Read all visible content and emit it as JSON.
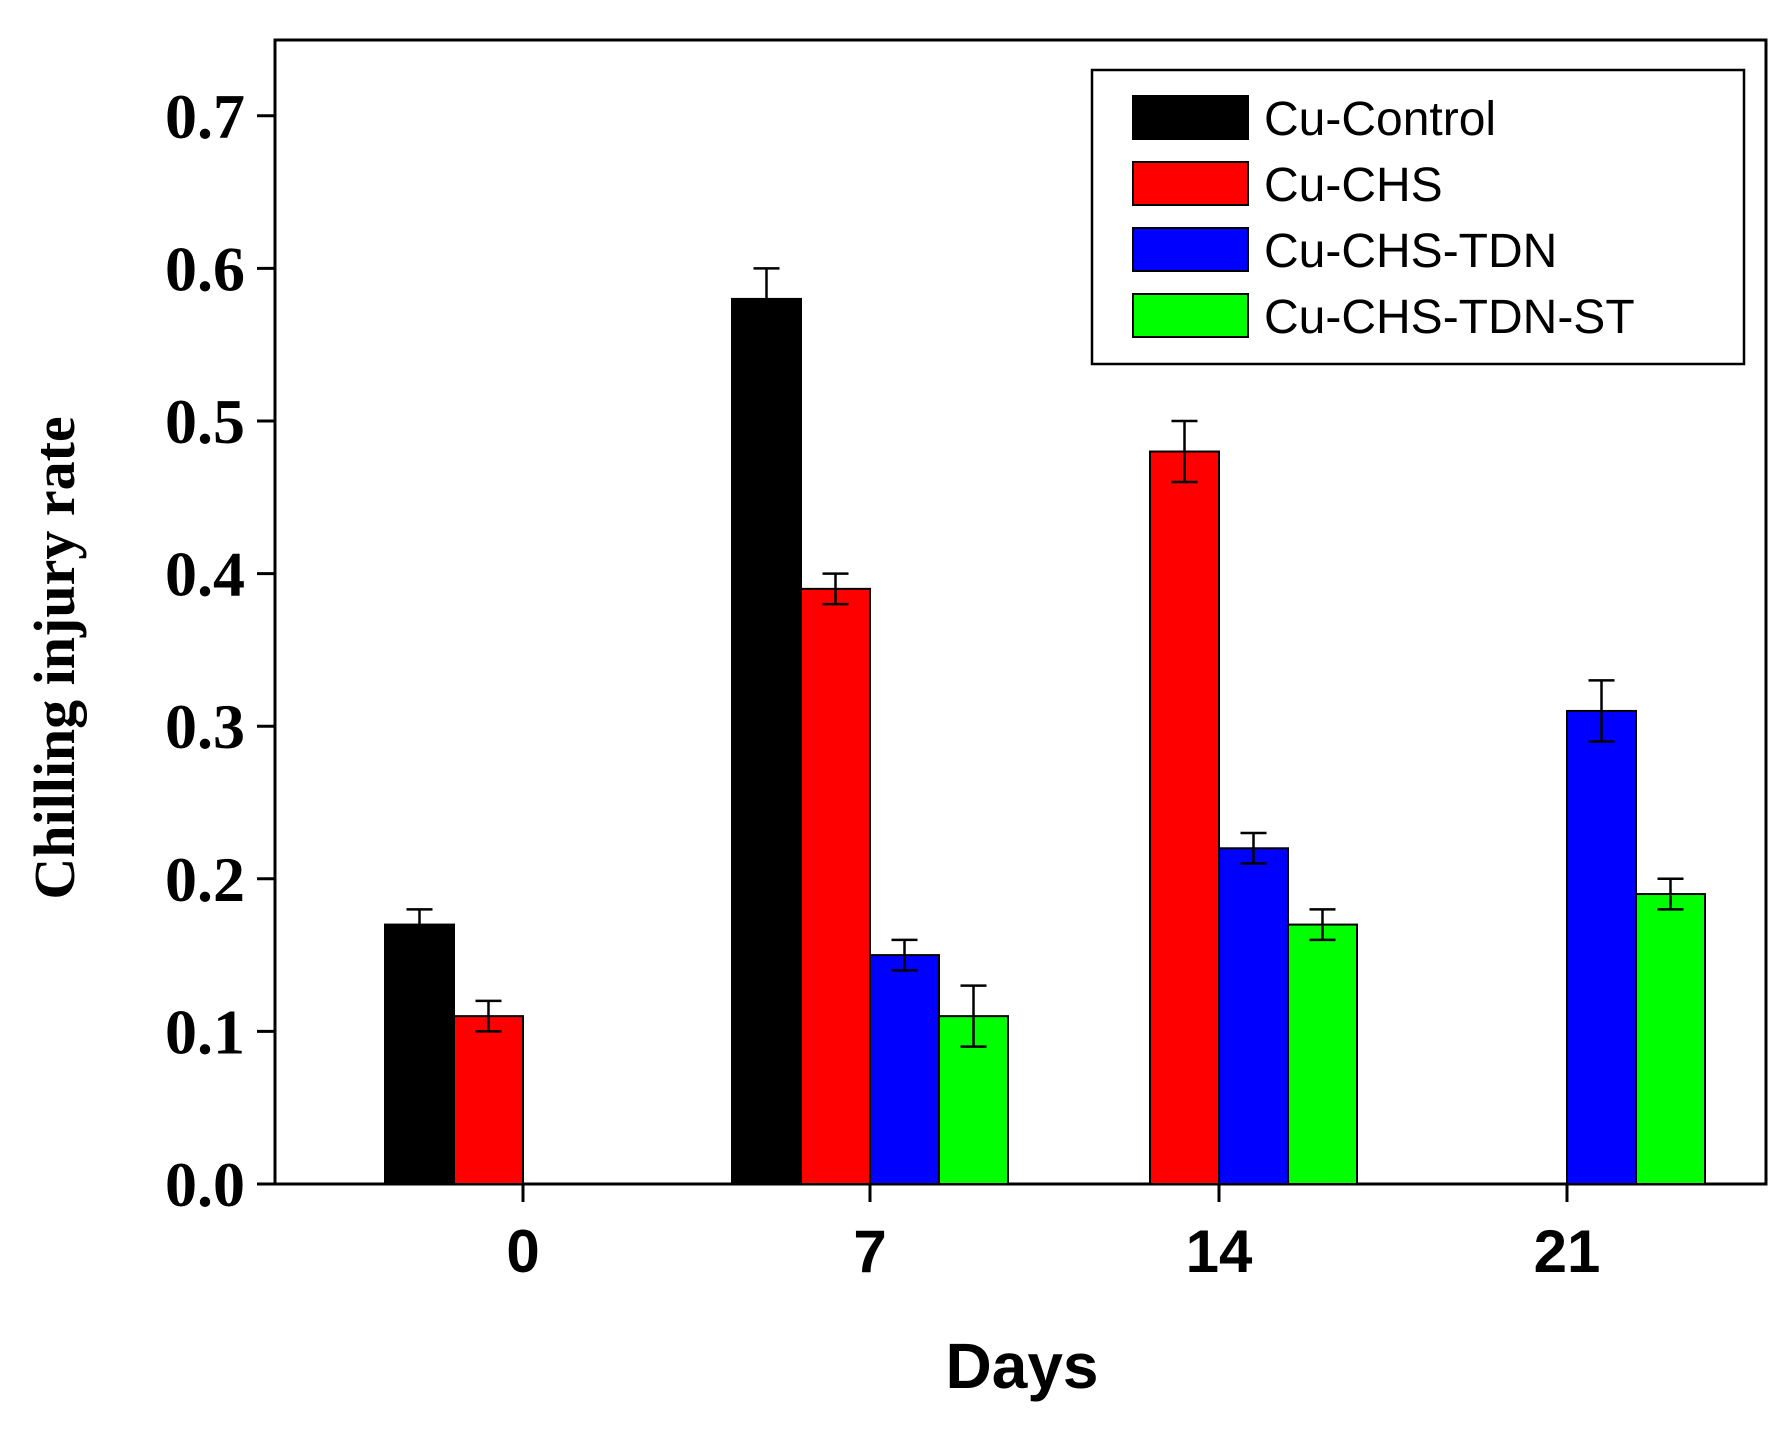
{
  "chart_data": {
    "type": "bar",
    "title": "",
    "xlabel": "Days",
    "ylabel": "Chilling injury rate",
    "categories": [
      "0",
      "7",
      "14",
      "21"
    ],
    "ylim": [
      0,
      0.75
    ],
    "yticks": [
      0.0,
      0.1,
      0.2,
      0.3,
      0.4,
      0.5,
      0.6,
      0.7
    ],
    "ytick_labels": [
      "0.0",
      "0.1",
      "0.2",
      "0.3",
      "0.4",
      "0.5",
      "0.6",
      "0.7"
    ],
    "grid": false,
    "legend_position": "top-right",
    "error_bars": "upper",
    "series": [
      {
        "name": "Cu-Control",
        "color": "#000000",
        "values": [
          0.17,
          0.58,
          null,
          null
        ],
        "errors": [
          0.01,
          0.02,
          null,
          null
        ]
      },
      {
        "name": "Cu-CHS",
        "color": "#ff0000",
        "values": [
          0.11,
          0.39,
          0.48,
          null
        ],
        "errors": [
          0.01,
          0.01,
          0.02,
          null
        ]
      },
      {
        "name": "Cu-CHS-TDN",
        "color": "#0000ff",
        "values": [
          null,
          0.15,
          0.22,
          0.31
        ],
        "errors": [
          null,
          0.01,
          0.01,
          0.02
        ]
      },
      {
        "name": "Cu-CHS-TDN-ST",
        "color": "#00ff00",
        "values": [
          null,
          0.11,
          0.17,
          0.19
        ],
        "errors": [
          null,
          0.02,
          0.01,
          0.01
        ]
      }
    ]
  }
}
